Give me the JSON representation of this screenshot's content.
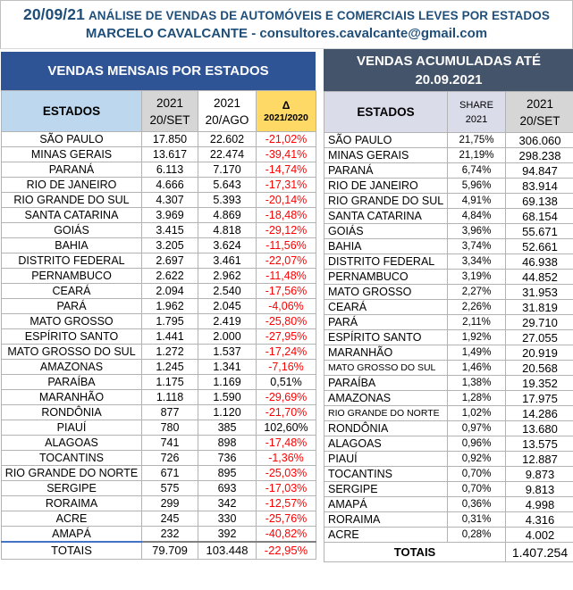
{
  "page_header": {
    "date": "20/09/21",
    "title": "ANÁLISE DE VENDAS DE AUTOMÓVEIS E COMERCIAIS LEVES POR ESTADOS",
    "subtitle": "MARCELO CAVALCANTE - consultores.cavalcante@gmail.com"
  },
  "colors": {
    "header_text": "#1F4E79",
    "left_title_bg": "#2F5496",
    "right_title_bg": "#44546A",
    "estados_header_bg": "#BDD7EE",
    "gray_header_bg": "#D6D6D6",
    "delta_header_bg": "#FFD966",
    "right_header_bg": "#DADCEA",
    "negative_value": "#FF0000"
  },
  "left_table": {
    "title": "VENDAS MENSAIS POR ESTADOS",
    "columns": [
      {
        "label": "ESTADOS"
      },
      {
        "line1": "2021",
        "line2": "20/SET"
      },
      {
        "line1": "2021",
        "line2": "20/AGO"
      },
      {
        "line1": "Δ",
        "line2": "2021/2020"
      }
    ],
    "rows": [
      {
        "estado": "SÃO PAULO",
        "set": "17.850",
        "ago": "22.602",
        "delta": "-21,02%"
      },
      {
        "estado": "MINAS GERAIS",
        "set": "13.617",
        "ago": "22.474",
        "delta": "-39,41%"
      },
      {
        "estado": "PARANÁ",
        "set": "6.113",
        "ago": "7.170",
        "delta": "-14,74%"
      },
      {
        "estado": "RIO DE JANEIRO",
        "set": "4.666",
        "ago": "5.643",
        "delta": "-17,31%"
      },
      {
        "estado": "RIO GRANDE DO SUL",
        "set": "4.307",
        "ago": "5.393",
        "delta": "-20,14%"
      },
      {
        "estado": "SANTA CATARINA",
        "set": "3.969",
        "ago": "4.869",
        "delta": "-18,48%"
      },
      {
        "estado": "GOIÁS",
        "set": "3.415",
        "ago": "4.818",
        "delta": "-29,12%"
      },
      {
        "estado": "BAHIA",
        "set": "3.205",
        "ago": "3.624",
        "delta": "-11,56%"
      },
      {
        "estado": "DISTRITO FEDERAL",
        "set": "2.697",
        "ago": "3.461",
        "delta": "-22,07%"
      },
      {
        "estado": "PERNAMBUCO",
        "set": "2.622",
        "ago": "2.962",
        "delta": "-11,48%"
      },
      {
        "estado": "CEARÁ",
        "set": "2.094",
        "ago": "2.540",
        "delta": "-17,56%"
      },
      {
        "estado": "PARÁ",
        "set": "1.962",
        "ago": "2.045",
        "delta": "-4,06%"
      },
      {
        "estado": "MATO GROSSO",
        "set": "1.795",
        "ago": "2.419",
        "delta": "-25,80%"
      },
      {
        "estado": "ESPÍRITO SANTO",
        "set": "1.441",
        "ago": "2.000",
        "delta": "-27,95%"
      },
      {
        "estado": "MATO GROSSO DO SUL",
        "set": "1.272",
        "ago": "1.537",
        "delta": "-17,24%"
      },
      {
        "estado": "AMAZONAS",
        "set": "1.245",
        "ago": "1.341",
        "delta": "-7,16%"
      },
      {
        "estado": "PARAÍBA",
        "set": "1.175",
        "ago": "1.169",
        "delta": "0,51%"
      },
      {
        "estado": "MARANHÃO",
        "set": "1.118",
        "ago": "1.590",
        "delta": "-29,69%"
      },
      {
        "estado": "RONDÔNIA",
        "set": "877",
        "ago": "1.120",
        "delta": "-21,70%"
      },
      {
        "estado": "PIAUÍ",
        "set": "780",
        "ago": "385",
        "delta": "102,60%"
      },
      {
        "estado": "ALAGOAS",
        "set": "741",
        "ago": "898",
        "delta": "-17,48%"
      },
      {
        "estado": "TOCANTINS",
        "set": "726",
        "ago": "736",
        "delta": "-1,36%"
      },
      {
        "estado": "RIO GRANDE DO NORTE",
        "set": "671",
        "ago": "895",
        "delta": "-25,03%"
      },
      {
        "estado": "SERGIPE",
        "set": "575",
        "ago": "693",
        "delta": "-17,03%"
      },
      {
        "estado": "RORAIMA",
        "set": "299",
        "ago": "342",
        "delta": "-12,57%"
      },
      {
        "estado": "ACRE",
        "set": "245",
        "ago": "330",
        "delta": "-25,76%"
      },
      {
        "estado": "AMAPÁ",
        "set": "232",
        "ago": "392",
        "delta": "-40,82%"
      }
    ],
    "totals": {
      "estado": "TOTAIS",
      "set": "79.709",
      "ago": "103.448",
      "delta": "-22,95%"
    }
  },
  "right_table": {
    "title_line1": "VENDAS ACUMULADAS ATÉ",
    "title_line2": "20.09.2021",
    "columns": [
      {
        "label": "ESTADOS"
      },
      {
        "line1": "SHARE",
        "line2": "2021"
      },
      {
        "line1": "2021",
        "line2": "20/SET"
      }
    ],
    "rows": [
      {
        "estado": "SÃO PAULO",
        "share": "21,75%",
        "valor": "306.060"
      },
      {
        "estado": "MINAS GERAIS",
        "share": "21,19%",
        "valor": "298.238"
      },
      {
        "estado": "PARANÁ",
        "share": "6,74%",
        "valor": "94.847"
      },
      {
        "estado": "RIO DE JANEIRO",
        "share": "5,96%",
        "valor": "83.914"
      },
      {
        "estado": "RIO GRANDE DO SUL",
        "share": "4,91%",
        "valor": "69.138"
      },
      {
        "estado": "SANTA CATARINA",
        "share": "4,84%",
        "valor": "68.154"
      },
      {
        "estado": "GOIÁS",
        "share": "3,96%",
        "valor": "55.671"
      },
      {
        "estado": "BAHIA",
        "share": "3,74%",
        "valor": "52.661"
      },
      {
        "estado": "DISTRITO FEDERAL",
        "share": "3,34%",
        "valor": "46.938"
      },
      {
        "estado": "PERNAMBUCO",
        "share": "3,19%",
        "valor": "44.852"
      },
      {
        "estado": "MATO GROSSO",
        "share": "2,27%",
        "valor": "31.953"
      },
      {
        "estado": "CEARÁ",
        "share": "2,26%",
        "valor": "31.819"
      },
      {
        "estado": "PARÁ",
        "share": "2,11%",
        "valor": "29.710"
      },
      {
        "estado": "ESPÍRITO SANTO",
        "share": "1,92%",
        "valor": "27.055"
      },
      {
        "estado": "MARANHÃO",
        "share": "1,49%",
        "valor": "20.919"
      },
      {
        "estado": "MATO GROSSO DO SUL",
        "share": "1,46%",
        "valor": "20.568"
      },
      {
        "estado": "PARAÍBA",
        "share": "1,38%",
        "valor": "19.352"
      },
      {
        "estado": "AMAZONAS",
        "share": "1,28%",
        "valor": "17.975"
      },
      {
        "estado": "RIO GRANDE DO NORTE",
        "share": "1,02%",
        "valor": "14.286"
      },
      {
        "estado": "RONDÔNIA",
        "share": "0,97%",
        "valor": "13.680"
      },
      {
        "estado": "ALAGOAS",
        "share": "0,96%",
        "valor": "13.575"
      },
      {
        "estado": "PIAUÍ",
        "share": "0,92%",
        "valor": "12.887"
      },
      {
        "estado": "TOCANTINS",
        "share": "0,70%",
        "valor": "9.873"
      },
      {
        "estado": "SERGIPE",
        "share": "0,70%",
        "valor": "9.813"
      },
      {
        "estado": "AMAPÁ",
        "share": "0,36%",
        "valor": "4.998"
      },
      {
        "estado": "RORAIMA",
        "share": "0,31%",
        "valor": "4.316"
      },
      {
        "estado": "ACRE",
        "share": "0,28%",
        "valor": "4.002"
      }
    ],
    "totals": {
      "label": "TOTAIS",
      "valor": "1.407.254"
    }
  }
}
